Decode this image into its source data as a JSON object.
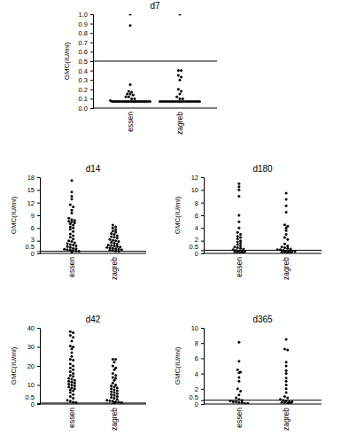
{
  "chart_data": [
    {
      "type": "scatter",
      "title": "d7",
      "y_label": "GMC(IU/ml)",
      "categories": [
        "essen",
        "zagreb"
      ],
      "color": "#000000",
      "ylim": [
        0,
        1.0
      ],
      "yticks": [
        {
          "value": 0,
          "label": "0.0"
        },
        0.1,
        0.2,
        0.3,
        0.4,
        0.5,
        0.6,
        0.7,
        0.8,
        0.9,
        {
          "value": 1.0,
          "label": "1.0"
        }
      ],
      "reference_line": 0.5,
      "values": [
        [
          1.0,
          0.88,
          0.25,
          0.18,
          0.17,
          0.15,
          0.15,
          0.14,
          0.12,
          0.12,
          0.1,
          0.1,
          0.08,
          0.07,
          0.07,
          0.07,
          0.07,
          0.07,
          0.07,
          0.07,
          0.07,
          0.07,
          0.07,
          0.07,
          0.07,
          0.07,
          0.07,
          0.07,
          0.07,
          0.07,
          0.07,
          0.07,
          0.07,
          0.07,
          0.07,
          0.07
        ],
        [
          1.0,
          0.4,
          0.4,
          0.35,
          0.33,
          0.3,
          0.2,
          0.18,
          0.15,
          0.12,
          0.1,
          0.1,
          0.07,
          0.07,
          0.07,
          0.07,
          0.07,
          0.07,
          0.07,
          0.07,
          0.07,
          0.07,
          0.07,
          0.07,
          0.07,
          0.07,
          0.07,
          0.07,
          0.07,
          0.07,
          0.07,
          0.07,
          0.07
        ]
      ]
    },
    {
      "type": "scatter",
      "title": "d14",
      "y_label": "GMC(IU/ml)",
      "categories": [
        "essen",
        "zagreb"
      ],
      "color": "#000000",
      "ylim": [
        0,
        18
      ],
      "yticks": [
        0,
        0.5,
        3,
        6,
        9,
        12,
        15,
        18
      ],
      "reference_line": 0.5,
      "values": [
        [
          17.2,
          14.5,
          13.5,
          12.8,
          11.5,
          11,
          10.2,
          9.5,
          8.3,
          8,
          7.8,
          7.6,
          7.5,
          7.2,
          7,
          6.7,
          6.3,
          6,
          5.7,
          5.2,
          4.6,
          4.2,
          3.8,
          3.4,
          3,
          2.8,
          2.5,
          2.3,
          2.1,
          2,
          1.8,
          1.6,
          1.4,
          1.2,
          1.1,
          1,
          0.9,
          0.8,
          0.7,
          0.6,
          0.5,
          0.3
        ],
        [
          6.7,
          6.3,
          6,
          5.6,
          5.3,
          5,
          4.7,
          4.5,
          4.2,
          4,
          3.8,
          3.6,
          3.3,
          3.1,
          3,
          2.8,
          2.6,
          2.4,
          2.2,
          2,
          1.9,
          1.8,
          1.6,
          1.5,
          1.4,
          1.3,
          1.2,
          1.1,
          1,
          0.9,
          0.8,
          0.7,
          0.6,
          0.5
        ]
      ]
    },
    {
      "type": "scatter",
      "title": "d180",
      "y_label": "GMC(IU/ml)",
      "categories": [
        "essen",
        "zagreb"
      ],
      "color": "#000000",
      "ylim": [
        0,
        12
      ],
      "yticks": [
        0,
        0.5,
        2,
        4,
        6,
        8,
        10,
        12
      ],
      "reference_line": 0.5,
      "values": [
        [
          11,
          10.5,
          10,
          9,
          6,
          5,
          4,
          3.3,
          3,
          2.7,
          2.5,
          2.3,
          2,
          1.8,
          1.6,
          1.4,
          1.2,
          1,
          0.9,
          0.8,
          0.7,
          0.6,
          0.5,
          0.4,
          0.3,
          0.3,
          0.2,
          0.2,
          0.1,
          0.1
        ],
        [
          9.5,
          8.5,
          7.5,
          6.5,
          4.5,
          4.3,
          4,
          3.6,
          3,
          2.5,
          2.2,
          1.5,
          1.2,
          1,
          0.9,
          0.8,
          0.7,
          0.6,
          0.6,
          0.5,
          0.4,
          0.4,
          0.3,
          0.3,
          0.2,
          0.2,
          0.1,
          0.1
        ]
      ]
    },
    {
      "type": "scatter",
      "title": "d42",
      "y_label": "GMC(IU/ml)",
      "categories": [
        "essen",
        "zagreb"
      ],
      "color": "#000000",
      "ylim": [
        0,
        40
      ],
      "yticks": [
        0,
        0.5,
        10,
        20,
        30,
        40
      ],
      "reference_line": 0.5,
      "values": [
        [
          38,
          37.5,
          36,
          35,
          33,
          30.5,
          30,
          29,
          27,
          25,
          23.5,
          23,
          21,
          20,
          19,
          18,
          17,
          16,
          15,
          14.5,
          13.5,
          13,
          12.5,
          12,
          11.5,
          11,
          10.5,
          10,
          9.5,
          9,
          8.5,
          8,
          7.5,
          7,
          6,
          5,
          4,
          3,
          2,
          1.5,
          1,
          0.8
        ],
        [
          23.5,
          23.5,
          22,
          20,
          19,
          18,
          16,
          15,
          14,
          13.5,
          12.5,
          11,
          10,
          9.5,
          9,
          8.5,
          8,
          7.5,
          7,
          6.5,
          6,
          5.5,
          5,
          4.5,
          4,
          3.5,
          3,
          2.5,
          2,
          1.8,
          1.5,
          1.2,
          1,
          0.8,
          0.6
        ]
      ]
    },
    {
      "type": "scatter",
      "title": "d365",
      "y_label": "GMC(IU/ml)",
      "categories": [
        "essen",
        "zagreb"
      ],
      "color": "#000000",
      "ylim": [
        0,
        10
      ],
      "yticks": [
        0,
        0.5,
        2,
        4,
        6,
        8,
        10
      ],
      "reference_line": 0.5,
      "values": [
        [
          8.1,
          5.6,
          4.5,
          4.2,
          4.1,
          3.5,
          3,
          2,
          1.7,
          1.2,
          0.8,
          0.6,
          0.5,
          0.4,
          0.3,
          0.3,
          0.2,
          0.2,
          0.1,
          0.1
        ],
        [
          8.5,
          7.2,
          7.1,
          5.5,
          5,
          4.4,
          4,
          3.4,
          3,
          2.5,
          2,
          1.5,
          1,
          0.8,
          0.6,
          0.5,
          0.4,
          0.3,
          0.3,
          0.2,
          0.2,
          0.1,
          0.1
        ]
      ]
    }
  ]
}
